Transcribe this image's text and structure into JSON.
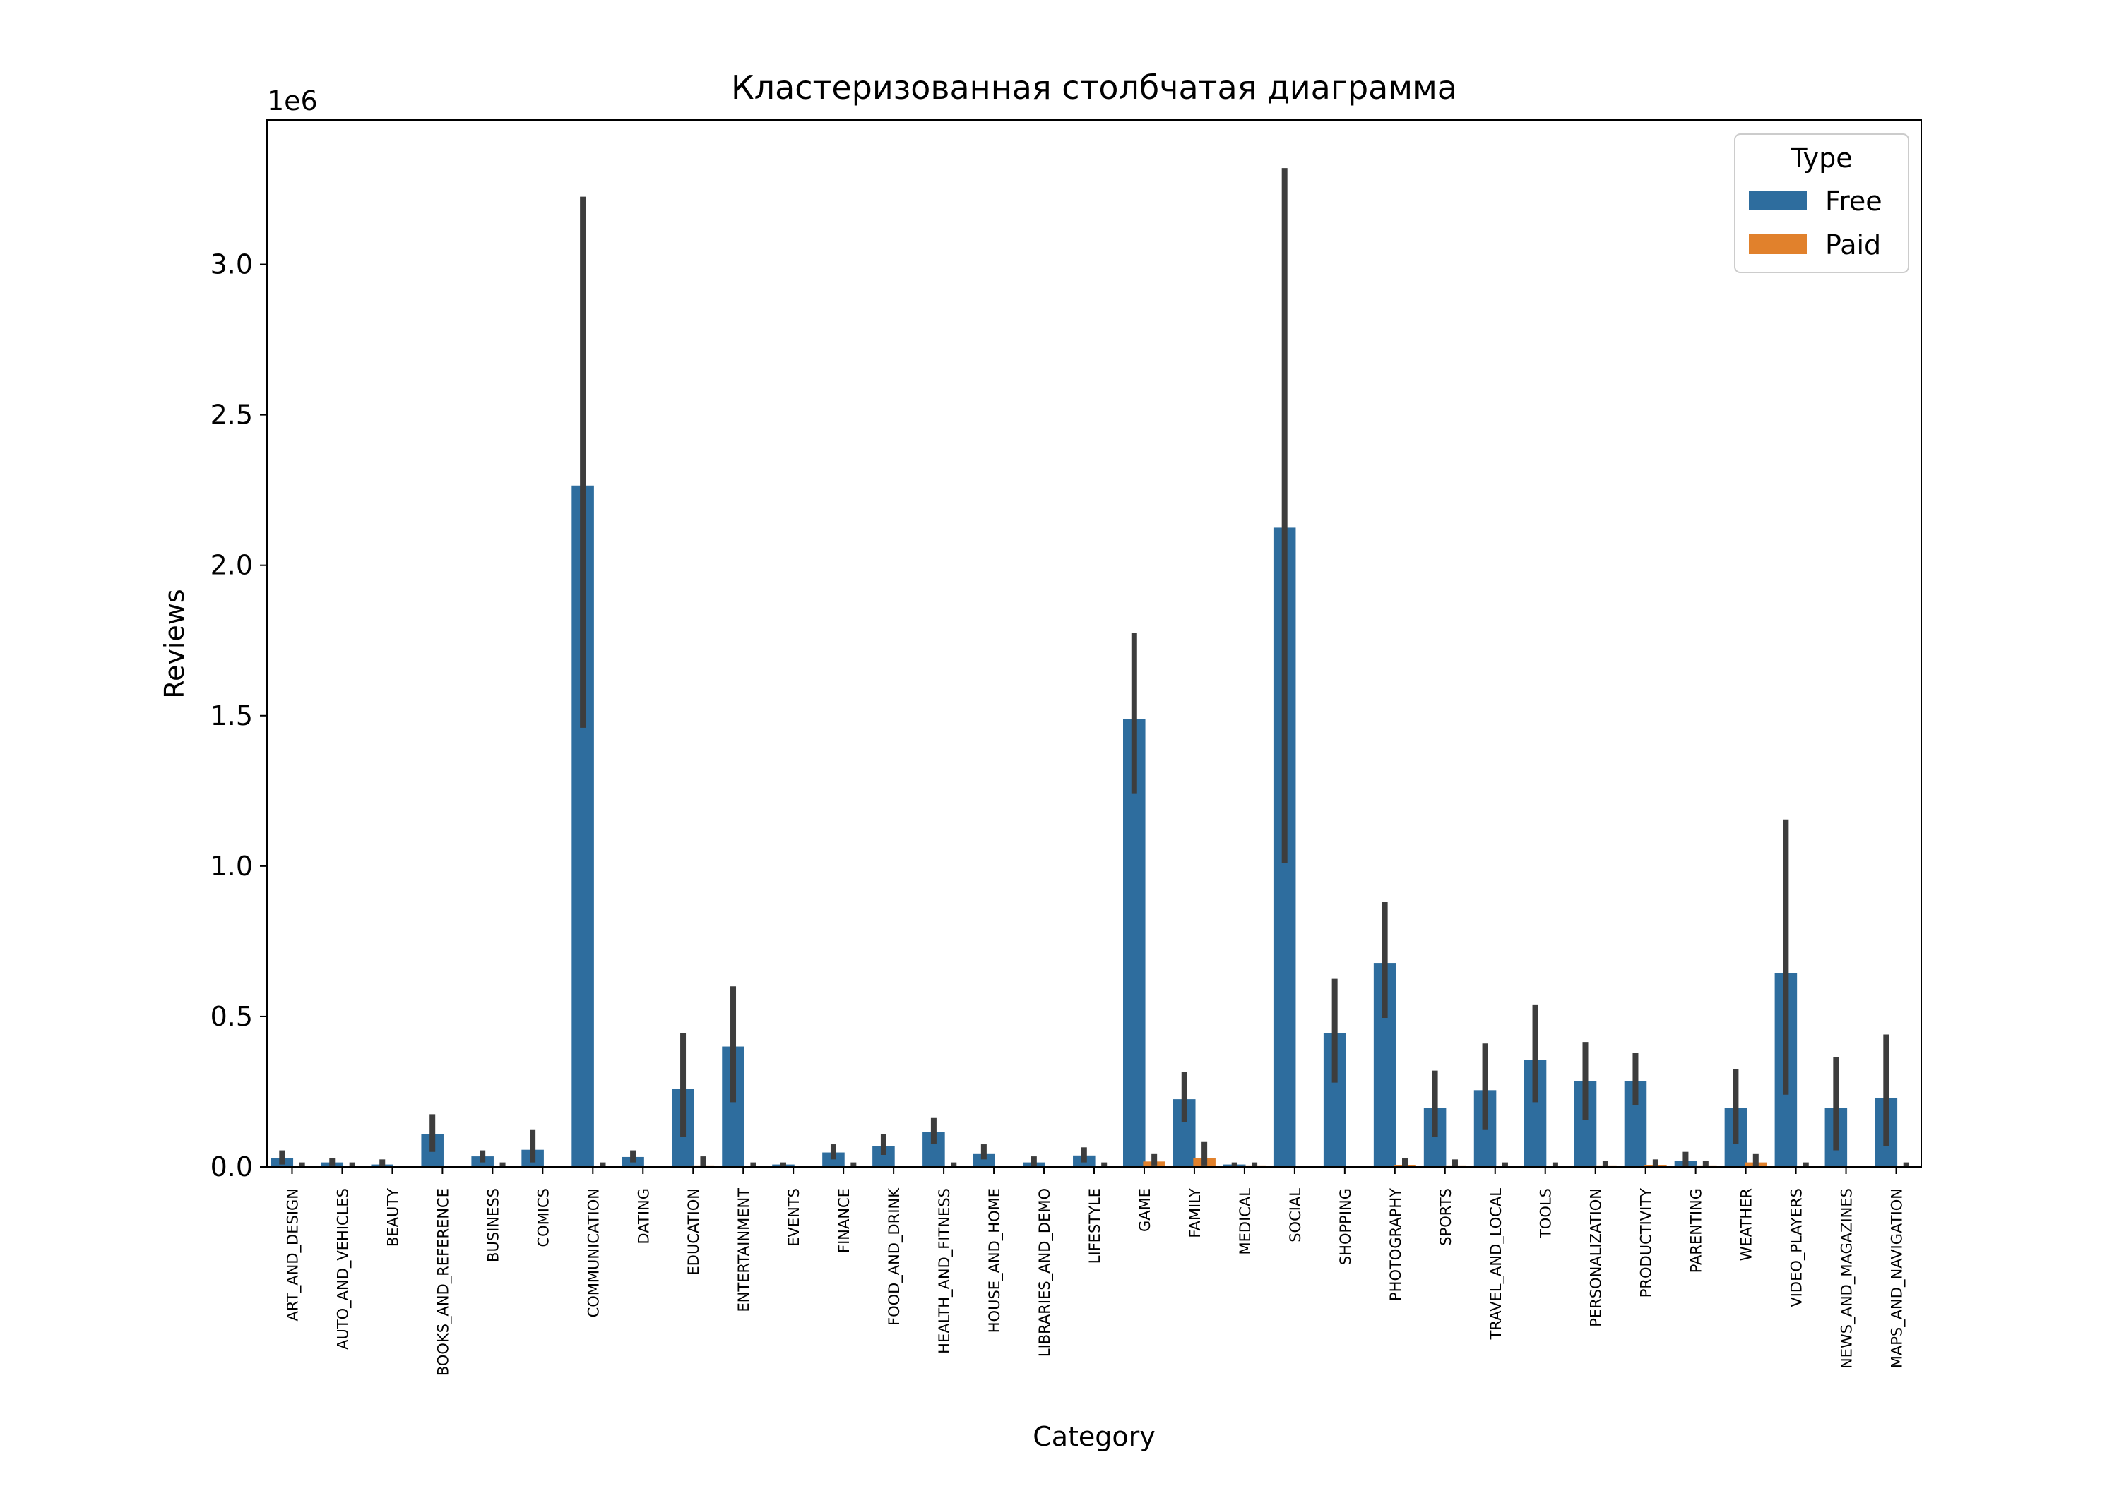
{
  "chart_data": {
    "type": "bar",
    "title": "Кластеризованная столбчатая диаграмма",
    "xlabel": "Category",
    "ylabel": "Reviews",
    "y_offset_label": "1e6",
    "ylim": [
      0,
      3.48
    ],
    "y_ticks": [
      "0.0",
      "0.5",
      "1.0",
      "1.5",
      "2.0",
      "2.5",
      "3.0"
    ],
    "y_tick_values": [
      0,
      0.5,
      1.0,
      1.5,
      2.0,
      2.5,
      3.0
    ],
    "y_multiplier": 1000000,
    "grid": false,
    "legend_position": "top-right",
    "legend_title": "Type",
    "categories": [
      "ART_AND_DESIGN",
      "AUTO_AND_VEHICLES",
      "BEAUTY",
      "BOOKS_AND_REFERENCE",
      "BUSINESS",
      "COMICS",
      "COMMUNICATION",
      "DATING",
      "EDUCATION",
      "ENTERTAINMENT",
      "EVENTS",
      "FINANCE",
      "FOOD_AND_DRINK",
      "HEALTH_AND_FITNESS",
      "HOUSE_AND_HOME",
      "LIBRARIES_AND_DEMO",
      "LIFESTYLE",
      "GAME",
      "FAMILY",
      "MEDICAL",
      "SOCIAL",
      "SHOPPING",
      "PHOTOGRAPHY",
      "SPORTS",
      "TRAVEL_AND_LOCAL",
      "TOOLS",
      "PERSONALIZATION",
      "PRODUCTIVITY",
      "PARENTING",
      "WEATHER",
      "VIDEO_PLAYERS",
      "NEWS_AND_MAGAZINES",
      "MAPS_AND_NAVIGATION"
    ],
    "series": [
      {
        "name": "Free",
        "color": "#2e6d9e",
        "values": [
          0.03,
          0.015,
          0.008,
          0.11,
          0.035,
          0.057,
          2.265,
          0.033,
          0.26,
          0.4,
          0.008,
          0.048,
          0.07,
          0.115,
          0.045,
          0.015,
          0.038,
          1.49,
          0.225,
          0.008,
          2.125,
          0.445,
          0.678,
          0.195,
          0.255,
          0.355,
          0.285,
          0.285,
          0.02,
          0.195,
          0.645,
          0.195,
          0.23
        ],
        "err_low": [
          0.008,
          0.005,
          0.0,
          0.05,
          0.015,
          0.015,
          1.46,
          0.015,
          0.1,
          0.215,
          0.0,
          0.025,
          0.04,
          0.075,
          0.025,
          0.0,
          0.015,
          1.24,
          0.15,
          0.0,
          1.01,
          0.28,
          0.495,
          0.1,
          0.125,
          0.215,
          0.155,
          0.205,
          0.0,
          0.075,
          0.24,
          0.055,
          0.07
        ],
        "err_high": [
          0.055,
          0.03,
          0.025,
          0.175,
          0.055,
          0.125,
          3.225,
          0.055,
          0.445,
          0.6,
          0.015,
          0.075,
          0.11,
          0.165,
          0.075,
          0.035,
          0.065,
          1.775,
          0.315,
          0.015,
          3.32,
          0.625,
          0.88,
          0.32,
          0.41,
          0.54,
          0.415,
          0.38,
          0.05,
          0.325,
          1.155,
          0.365,
          0.44
        ]
      },
      {
        "name": "Paid",
        "color": "#e1812c",
        "values": [
          0.003,
          0.003,
          0,
          0,
          0.002,
          0,
          0.002,
          0,
          0.005,
          0.002,
          0,
          0.002,
          0,
          0.002,
          0,
          0,
          0.002,
          0.018,
          0.03,
          0.005,
          0,
          0,
          0.007,
          0.005,
          0.002,
          0.002,
          0.005,
          0.007,
          0.005,
          0.015,
          0.002,
          0,
          0.003
        ],
        "has_bar": [
          true,
          true,
          false,
          false,
          true,
          false,
          true,
          false,
          true,
          true,
          false,
          true,
          false,
          true,
          false,
          false,
          true,
          true,
          true,
          true,
          false,
          false,
          true,
          true,
          true,
          true,
          true,
          true,
          true,
          true,
          true,
          false,
          true
        ],
        "err_low": [
          0,
          0,
          0,
          0,
          0,
          0,
          0,
          0,
          0,
          0,
          0,
          0,
          0,
          0,
          0,
          0,
          0,
          0.005,
          0.005,
          0,
          0,
          0,
          0,
          0,
          0,
          0,
          0,
          0,
          0,
          0,
          0,
          0,
          0
        ],
        "err_high": [
          0.015,
          0.015,
          0,
          0,
          0.015,
          0,
          0.015,
          0,
          0.035,
          0.015,
          0,
          0.015,
          0,
          0.015,
          0,
          0,
          0.015,
          0.045,
          0.085,
          0.015,
          0,
          0,
          0.03,
          0.025,
          0.015,
          0.015,
          0.02,
          0.025,
          0.02,
          0.045,
          0.015,
          0,
          0.015
        ]
      }
    ]
  }
}
